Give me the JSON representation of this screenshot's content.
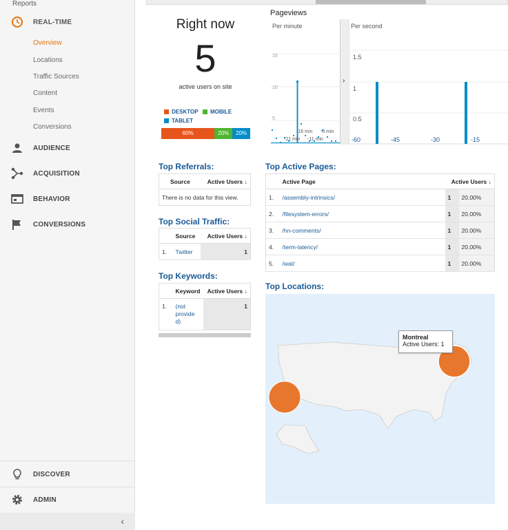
{
  "sidebar": {
    "reports_label": "Reports",
    "realtime": {
      "label": "REAL-TIME",
      "items": [
        "Overview",
        "Locations",
        "Traffic Sources",
        "Content",
        "Events",
        "Conversions"
      ]
    },
    "audience": "AUDIENCE",
    "acquisition": "ACQUISITION",
    "behavior": "BEHAVIOR",
    "conversions": "CONVERSIONS",
    "discover": "DISCOVER",
    "admin": "ADMIN",
    "collapse_glyph": "‹"
  },
  "right_now": {
    "title": "Right now",
    "count": "5",
    "subtitle": "active users on site"
  },
  "devices": {
    "legend": [
      {
        "label": "DESKTOP",
        "color": "#e8551c"
      },
      {
        "label": "MOBILE",
        "color": "#50b432"
      },
      {
        "label": "TABLET",
        "color": "#058dc7"
      }
    ],
    "bar": [
      {
        "value": 60,
        "label": "60%",
        "color": "#e8551c"
      },
      {
        "value": 20,
        "label": "20%",
        "color": "#50b432"
      },
      {
        "value": 20,
        "label": "20%",
        "color": "#058dc7"
      }
    ]
  },
  "pageviews": {
    "title": "Pageviews",
    "per_minute": {
      "label": "Per minute",
      "y_ticks": [
        "15",
        "10",
        "5"
      ],
      "x_labels": [
        "-21 min",
        "-16 min",
        "-11 min",
        "-6 min"
      ]
    },
    "per_second": {
      "label": "Per second",
      "y_ticks": [
        "1.5",
        "1",
        "0.5"
      ],
      "x_labels": [
        "-60",
        "-45",
        "-30",
        "-15"
      ]
    },
    "expand_glyph": "›"
  },
  "top_referrals": {
    "title": "Top Referrals:",
    "col_source": "Source",
    "col_users": "Active Users",
    "empty": "There is no data for this view."
  },
  "top_social": {
    "title": "Top Social Traffic:",
    "col_source": "Source",
    "col_users": "Active Users",
    "rows": [
      {
        "idx": "1.",
        "source": "Twitter",
        "users": "1"
      }
    ]
  },
  "top_keywords": {
    "title": "Top Keywords:",
    "col_keyword": "Keyword",
    "col_users": "Active Users",
    "rows": [
      {
        "idx": "1.",
        "keyword_lines": [
          "(not",
          "provide",
          "d)"
        ],
        "users": "1"
      }
    ]
  },
  "top_pages": {
    "title": "Top Active Pages:",
    "col_page": "Active Page",
    "col_users": "Active Users",
    "rows": [
      {
        "idx": "1.",
        "page": "/assembly-intrinsics/",
        "users": "1",
        "pct": "20.00%"
      },
      {
        "idx": "2.",
        "page": "/filesystem-errors/",
        "users": "1",
        "pct": "20.00%"
      },
      {
        "idx": "3.",
        "page": "/hn-comments/",
        "users": "1",
        "pct": "20.00%"
      },
      {
        "idx": "4.",
        "page": "/term-latency/",
        "users": "1",
        "pct": "20.00%"
      },
      {
        "idx": "5.",
        "page": "/wat/",
        "users": "1",
        "pct": "20.00%"
      }
    ]
  },
  "top_locations": {
    "title": "Top Locations:",
    "tooltip": {
      "city": "Montreal",
      "text": "Active Users: 1"
    },
    "bubble_color": "#e8772e"
  }
}
